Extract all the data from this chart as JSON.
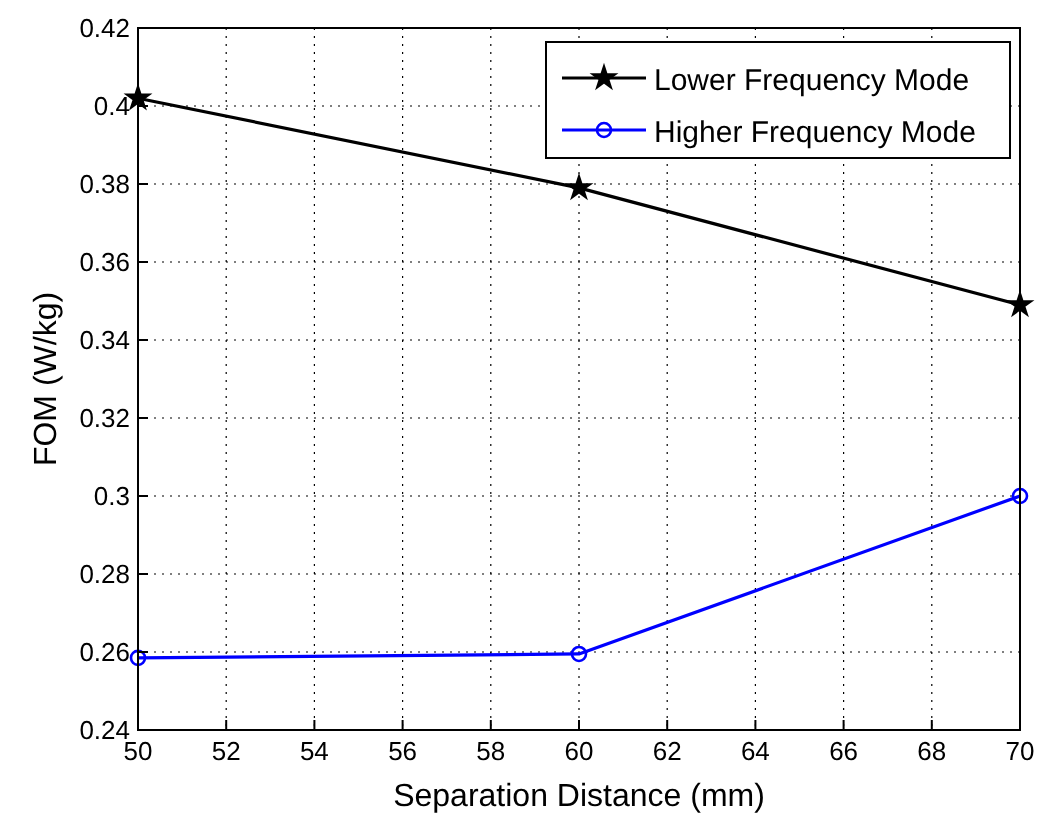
{
  "chart_data": {
    "type": "line",
    "xlabel": "Separation Distance (mm)",
    "ylabel": "FOM (W/kg)",
    "x": [
      50,
      60,
      70
    ],
    "series": [
      {
        "name": "Lower Frequency Mode",
        "color": "#000000",
        "values": [
          0.402,
          0.379,
          0.349
        ],
        "marker": "star"
      },
      {
        "name": "Higher Frequency Mode",
        "color": "#0000ff",
        "values": [
          0.2585,
          0.2595,
          0.3
        ],
        "marker": "circle"
      }
    ],
    "xlim": [
      50,
      70
    ],
    "xticks": [
      50,
      52,
      54,
      56,
      58,
      60,
      62,
      64,
      66,
      68,
      70
    ],
    "ylim": [
      0.24,
      0.42
    ],
    "yticks": [
      0.24,
      0.26,
      0.28,
      0.3,
      0.32,
      0.34,
      0.36,
      0.38,
      0.4,
      0.42
    ],
    "grid": true,
    "legend": "top right",
    "line_style": "solid"
  }
}
